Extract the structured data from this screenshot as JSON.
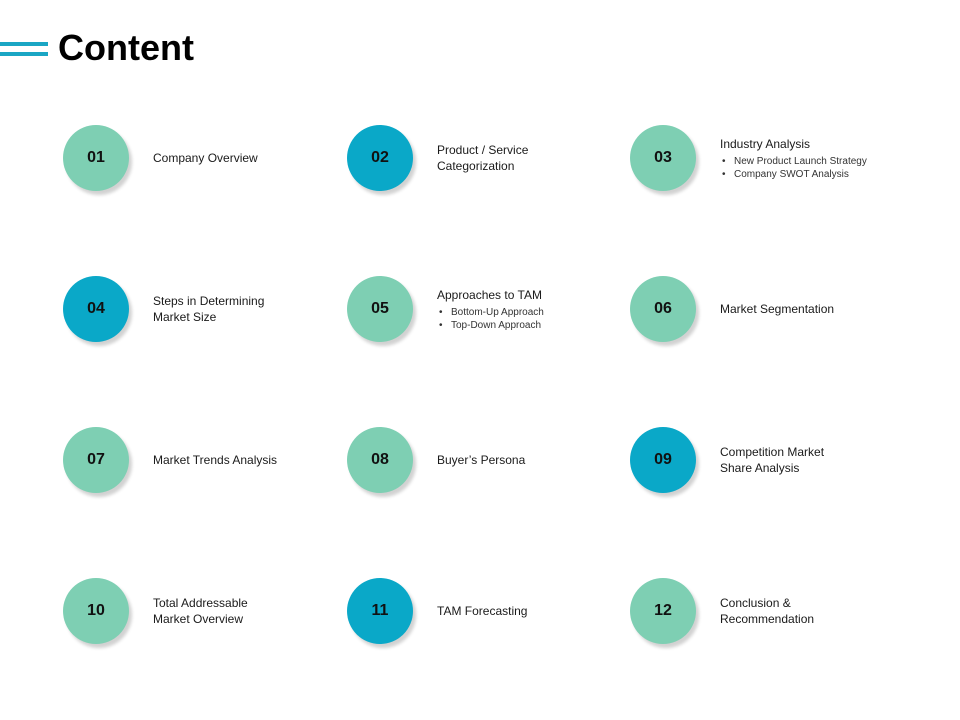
{
  "title": "Content",
  "items": [
    {
      "number": "01",
      "label": "Company Overview",
      "color": "green",
      "subs": []
    },
    {
      "number": "02",
      "label": "Product / Service\nCategorization",
      "color": "blue",
      "subs": []
    },
    {
      "number": "03",
      "label": "Industry Analysis",
      "color": "green",
      "subs": [
        "New Product Launch Strategy",
        "Company SWOT Analysis"
      ]
    },
    {
      "number": "04",
      "label": "Steps in Determining\nMarket Size",
      "color": "blue",
      "subs": []
    },
    {
      "number": "05",
      "label": "Approaches to TAM",
      "color": "green",
      "subs": [
        "Bottom-Up Approach",
        "Top-Down Approach"
      ]
    },
    {
      "number": "06",
      "label": "Market Segmentation",
      "color": "green",
      "subs": []
    },
    {
      "number": "07",
      "label": "Market Trends Analysis",
      "color": "green",
      "subs": []
    },
    {
      "number": "08",
      "label": "Buyer’s Persona",
      "color": "green",
      "subs": []
    },
    {
      "number": "09",
      "label": "Competition Market\nShare Analysis",
      "color": "blue",
      "subs": []
    },
    {
      "number": "10",
      "label": "Total Addressable\nMarket Overview",
      "color": "green",
      "subs": []
    },
    {
      "number": "11",
      "label": "TAM Forecasting",
      "color": "blue",
      "subs": []
    },
    {
      "number": "12",
      "label": "Conclusion &\nRecommendation",
      "color": "green",
      "subs": []
    }
  ],
  "colors": {
    "green": "#7ecfb3",
    "blue": "#0aa8c8",
    "accent": "#1aa6c4"
  }
}
